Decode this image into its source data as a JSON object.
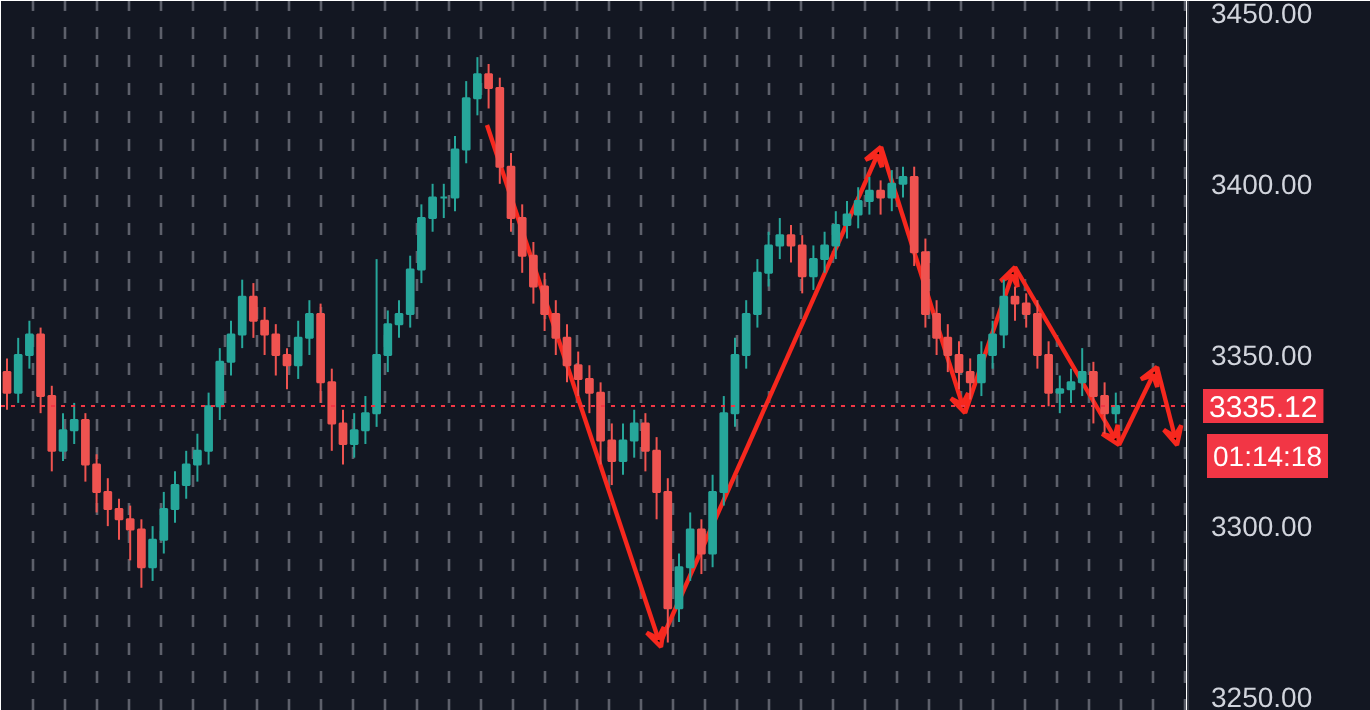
{
  "chart_data": {
    "type": "candlestick",
    "categories": [
      null,
      null,
      null,
      null,
      null,
      null,
      null,
      null,
      null,
      null,
      null,
      null,
      null,
      null,
      null,
      null,
      null,
      null,
      null,
      null,
      null,
      null,
      null,
      null,
      null,
      null,
      null,
      null,
      null,
      null,
      null,
      null,
      null,
      null,
      null,
      null,
      null,
      null,
      null,
      null,
      null,
      null,
      null,
      null,
      null,
      null,
      null,
      null,
      null,
      null,
      null,
      null,
      null,
      null,
      null,
      null,
      null,
      null,
      null,
      null,
      null,
      null,
      null,
      null,
      null,
      null,
      null,
      null,
      null,
      null,
      null,
      null,
      null,
      null,
      null,
      null,
      null,
      null,
      null,
      null,
      null,
      null,
      null,
      null,
      null,
      null,
      null,
      null,
      null,
      null,
      null,
      null,
      null,
      null,
      null,
      null,
      null,
      null,
      null,
      null
    ],
    "ohlc": [
      [
        3345,
        3349,
        3334,
        3339
      ],
      [
        3339,
        3355,
        3336,
        3350
      ],
      [
        3350,
        3360,
        3346,
        3356
      ],
      [
        3356,
        3358,
        3333,
        3338
      ],
      [
        3338,
        3341,
        3316,
        3322
      ],
      [
        3322,
        3333,
        3319,
        3328
      ],
      [
        3328,
        3336,
        3324,
        3331
      ],
      [
        3331,
        3333,
        3313,
        3318
      ],
      [
        3318,
        3321,
        3304,
        3310
      ],
      [
        3310,
        3314,
        3300,
        3305
      ],
      [
        3305,
        3308,
        3296,
        3302
      ],
      [
        3302,
        3306,
        3290,
        3299
      ],
      [
        3299,
        3302,
        3282,
        3288
      ],
      [
        3288,
        3300,
        3284,
        3296
      ],
      [
        3296,
        3310,
        3292,
        3305
      ],
      [
        3305,
        3316,
        3301,
        3312
      ],
      [
        3312,
        3322,
        3308,
        3318
      ],
      [
        3318,
        3327,
        3313,
        3322
      ],
      [
        3322,
        3339,
        3318,
        3335
      ],
      [
        3335,
        3352,
        3331,
        3348
      ],
      [
        3348,
        3360,
        3344,
        3356
      ],
      [
        3356,
        3372,
        3352,
        3367
      ],
      [
        3367,
        3371,
        3355,
        3360
      ],
      [
        3360,
        3364,
        3350,
        3356
      ],
      [
        3356,
        3359,
        3344,
        3350
      ],
      [
        3350,
        3352,
        3340,
        3347
      ],
      [
        3347,
        3360,
        3343,
        3355
      ],
      [
        3355,
        3366,
        3350,
        3362
      ],
      [
        3362,
        3365,
        3336,
        3342
      ],
      [
        3342,
        3346,
        3322,
        3330
      ],
      [
        3330,
        3334,
        3318,
        3324
      ],
      [
        3324,
        3333,
        3320,
        3328
      ],
      [
        3328,
        3338,
        3324,
        3333
      ],
      [
        3333,
        3378,
        3329,
        3350
      ],
      [
        3350,
        3363,
        3345,
        3359
      ],
      [
        3359,
        3366,
        3355,
        3362
      ],
      [
        3362,
        3379,
        3358,
        3375
      ],
      [
        3375,
        3394,
        3371,
        3390
      ],
      [
        3390,
        3400,
        3386,
        3396
      ],
      [
        3396,
        3400,
        3390,
        3396
      ],
      [
        3396,
        3414,
        3392,
        3410
      ],
      [
        3410,
        3430,
        3406,
        3425
      ],
      [
        3425,
        3437,
        3420,
        3432
      ],
      [
        3432,
        3435,
        3422,
        3428
      ],
      [
        3428,
        3431,
        3400,
        3405
      ],
      [
        3405,
        3409,
        3386,
        3390
      ],
      [
        3390,
        3394,
        3374,
        3379
      ],
      [
        3379,
        3383,
        3365,
        3370
      ],
      [
        3370,
        3374,
        3357,
        3362
      ],
      [
        3362,
        3366,
        3350,
        3355
      ],
      [
        3355,
        3359,
        3342,
        3347
      ],
      [
        3347,
        3351,
        3338,
        3343
      ],
      [
        3343,
        3347,
        3333,
        3339
      ],
      [
        3339,
        3342,
        3318,
        3325
      ],
      [
        3325,
        3330,
        3312,
        3319
      ],
      [
        3319,
        3330,
        3315,
        3325
      ],
      [
        3325,
        3334,
        3320,
        3330
      ],
      [
        3330,
        3333,
        3316,
        3322
      ],
      [
        3322,
        3326,
        3302,
        3310
      ],
      [
        3310,
        3314,
        3266,
        3276
      ],
      [
        3276,
        3292,
        3272,
        3288
      ],
      [
        3288,
        3304,
        3284,
        3299
      ],
      [
        3299,
        3302,
        3286,
        3292
      ],
      [
        3292,
        3315,
        3288,
        3310
      ],
      [
        3310,
        3338,
        3306,
        3333
      ],
      [
        3333,
        3355,
        3329,
        3350
      ],
      [
        3350,
        3366,
        3346,
        3362
      ],
      [
        3362,
        3378,
        3358,
        3374
      ],
      [
        3374,
        3386,
        3370,
        3382
      ],
      [
        3382,
        3390,
        3378,
        3385
      ],
      [
        3385,
        3388,
        3377,
        3382
      ],
      [
        3382,
        3385,
        3368,
        3373
      ],
      [
        3373,
        3382,
        3369,
        3378
      ],
      [
        3378,
        3386,
        3374,
        3382
      ],
      [
        3382,
        3392,
        3378,
        3388
      ],
      [
        3388,
        3395,
        3384,
        3391
      ],
      [
        3391,
        3399,
        3387,
        3395
      ],
      [
        3395,
        3402,
        3391,
        3398
      ],
      [
        3398,
        3401,
        3391,
        3396
      ],
      [
        3396,
        3404,
        3392,
        3400
      ],
      [
        3400,
        3405,
        3396,
        3402
      ],
      [
        3402,
        3405,
        3376,
        3380
      ],
      [
        3380,
        3384,
        3358,
        3362
      ],
      [
        3362,
        3366,
        3350,
        3355
      ],
      [
        3355,
        3359,
        3345,
        3350
      ],
      [
        3350,
        3354,
        3340,
        3345
      ],
      [
        3345,
        3349,
        3337,
        3342
      ],
      [
        3342,
        3354,
        3338,
        3350
      ],
      [
        3350,
        3360,
        3346,
        3356
      ],
      [
        3356,
        3372,
        3352,
        3367
      ],
      [
        3367,
        3370,
        3360,
        3365
      ],
      [
        3365,
        3368,
        3358,
        3362
      ],
      [
        3362,
        3366,
        3346,
        3350
      ],
      [
        3350,
        3354,
        3335,
        3339
      ],
      [
        3339,
        3344,
        3333,
        3340
      ],
      [
        3340,
        3346,
        3336,
        3342
      ],
      [
        3342,
        3352,
        3338,
        3345
      ],
      [
        3345,
        3348,
        3330,
        3338
      ],
      [
        3338,
        3342,
        3327,
        3333
      ],
      [
        3333,
        3339,
        3330,
        3335.12
      ]
    ],
    "ylim": [
      3246,
      3453.4
    ],
    "yticks": [
      {
        "value": 3250,
        "label": "3250.00"
      },
      {
        "value": 3300,
        "label": "3300.00"
      },
      {
        "value": 3350,
        "label": "3350.00"
      },
      {
        "value": 3400,
        "label": "3400.00"
      },
      {
        "value": 3450,
        "label": "3450.00"
      }
    ],
    "tick_labels": "y",
    "grid": "x",
    "ref_lines": [
      {
        "axis": "y",
        "value": 3335.12,
        "label": "3335.12",
        "color": "#f23645",
        "line_style": "dotted"
      }
    ],
    "annotations": [
      "01:14:18"
    ]
  }
}
